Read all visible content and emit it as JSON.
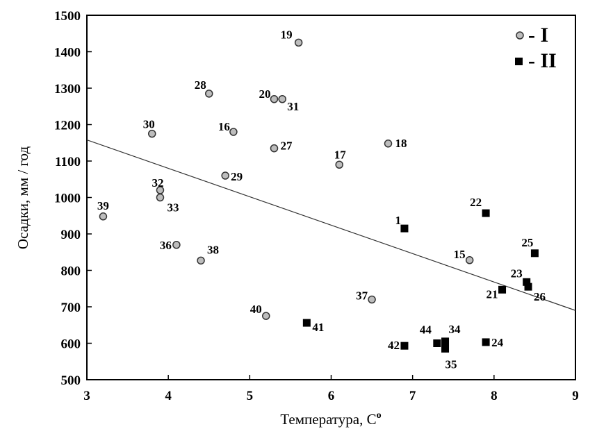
{
  "chart_data": {
    "type": "scatter",
    "xlabel": "Температура, С",
    "xlabel_sup": "o",
    "ylabel": "Осадки, мм / год",
    "xlim": [
      3,
      9
    ],
    "ylim": [
      500,
      1500
    ],
    "x_ticks": [
      "3",
      "4",
      "5",
      "6",
      "7",
      "8",
      "9"
    ],
    "y_ticks": [
      "500",
      "600",
      "700",
      "800",
      "900",
      "1000",
      "1100",
      "1200",
      "1300",
      "1400",
      "1500"
    ],
    "grid": false,
    "legend_position": "top-right",
    "legend": [
      {
        "name": "- I",
        "marker": "circle"
      },
      {
        "name": "- II",
        "marker": "square"
      }
    ],
    "trendline": {
      "x": [
        3,
        9
      ],
      "y": [
        1158,
        690
      ]
    },
    "series": [
      {
        "name": "I",
        "marker": "circle",
        "points": [
          {
            "label": "19",
            "x": 5.6,
            "y": 1425
          },
          {
            "label": "28",
            "x": 4.5,
            "y": 1285
          },
          {
            "label": "20",
            "x": 5.3,
            "y": 1270
          },
          {
            "label": "31",
            "x": 5.4,
            "y": 1270
          },
          {
            "label": "30",
            "x": 3.8,
            "y": 1175
          },
          {
            "label": "16",
            "x": 4.8,
            "y": 1180
          },
          {
            "label": "27",
            "x": 5.3,
            "y": 1135
          },
          {
            "label": "18",
            "x": 6.7,
            "y": 1148
          },
          {
            "label": "17",
            "x": 6.1,
            "y": 1090
          },
          {
            "label": "29",
            "x": 4.7,
            "y": 1060
          },
          {
            "label": "32",
            "x": 3.9,
            "y": 1020
          },
          {
            "label": "33",
            "x": 3.9,
            "y": 1000
          },
          {
            "label": "39",
            "x": 3.2,
            "y": 948
          },
          {
            "label": "36",
            "x": 4.1,
            "y": 870
          },
          {
            "label": "38",
            "x": 4.4,
            "y": 827
          },
          {
            "label": "15",
            "x": 7.7,
            "y": 828
          },
          {
            "label": "37",
            "x": 6.5,
            "y": 720
          },
          {
            "label": "40",
            "x": 5.2,
            "y": 675
          }
        ]
      },
      {
        "name": "II",
        "marker": "square",
        "points": [
          {
            "label": "22",
            "x": 7.9,
            "y": 957
          },
          {
            "label": "1",
            "x": 6.9,
            "y": 915
          },
          {
            "label": "25",
            "x": 8.5,
            "y": 847
          },
          {
            "label": "23",
            "x": 8.4,
            "y": 768
          },
          {
            "label": "26",
            "x": 8.42,
            "y": 755
          },
          {
            "label": "21",
            "x": 8.1,
            "y": 747
          },
          {
            "label": "41",
            "x": 5.7,
            "y": 656
          },
          {
            "label": "24",
            "x": 7.9,
            "y": 603
          },
          {
            "label": "34",
            "x": 7.4,
            "y": 605
          },
          {
            "label": "44",
            "x": 7.3,
            "y": 600
          },
          {
            "label": "42",
            "x": 6.9,
            "y": 593
          },
          {
            "label": "35",
            "x": 7.4,
            "y": 585
          }
        ]
      }
    ]
  }
}
